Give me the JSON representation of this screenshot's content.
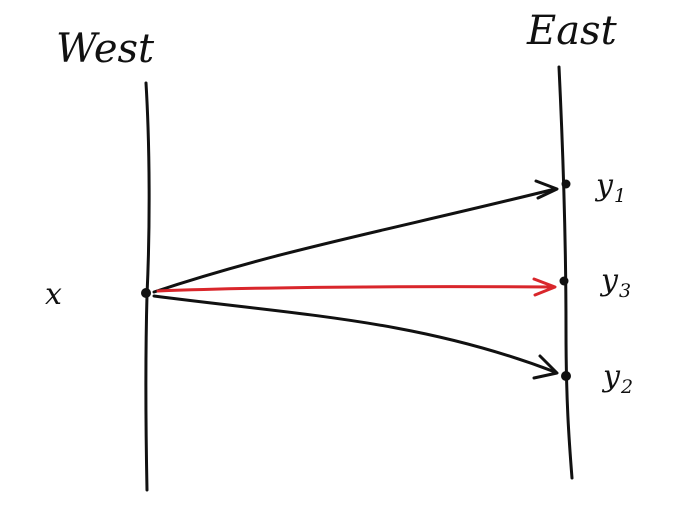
{
  "colors": {
    "ink": "#111111",
    "highlight": "#d9262b"
  },
  "west": {
    "title": "West",
    "point_label": "x"
  },
  "east": {
    "title": "East",
    "points": [
      {
        "base": "y",
        "sub": "1"
      },
      {
        "base": "y",
        "sub": "3"
      },
      {
        "base": "y",
        "sub": "2"
      }
    ]
  },
  "edges": [
    {
      "from": "x",
      "to": "y1",
      "highlighted": false
    },
    {
      "from": "x",
      "to": "y3",
      "highlighted": true
    },
    {
      "from": "x",
      "to": "y2",
      "highlighted": false
    }
  ]
}
